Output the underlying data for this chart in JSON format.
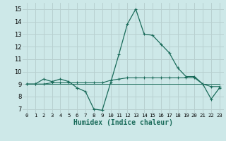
{
  "xlabel": "Humidex (Indice chaleur)",
  "background_color": "#cde8e8",
  "grid_color": "#b8d0d0",
  "line_color": "#1a6b5a",
  "xlim": [
    -0.5,
    23.5
  ],
  "ylim": [
    6.7,
    15.5
  ],
  "yticks": [
    7,
    8,
    9,
    10,
    11,
    12,
    13,
    14,
    15
  ],
  "xtick_labels": [
    "0",
    "1",
    "2",
    "3",
    "4",
    "5",
    "6",
    "7",
    "8",
    "9",
    "10",
    "11",
    "12",
    "13",
    "14",
    "15",
    "16",
    "17",
    "18",
    "19",
    "20",
    "21",
    "22",
    "23"
  ],
  "series1_x": [
    0,
    1,
    2,
    3,
    4,
    5,
    6,
    7,
    8,
    9,
    10,
    11,
    12,
    13,
    14,
    15,
    16,
    17,
    18,
    19,
    20,
    21,
    22,
    23
  ],
  "series1_y": [
    9.0,
    9.0,
    9.4,
    9.2,
    9.4,
    9.2,
    8.7,
    8.4,
    7.0,
    6.9,
    9.1,
    11.4,
    13.8,
    15.0,
    13.0,
    12.9,
    12.2,
    11.5,
    10.3,
    9.6,
    9.6,
    9.0,
    7.8,
    8.7
  ],
  "series2_x": [
    0,
    1,
    2,
    3,
    4,
    5,
    6,
    7,
    8,
    9,
    10,
    11,
    12,
    13,
    14,
    15,
    16,
    17,
    18,
    19,
    20,
    21,
    22,
    23
  ],
  "series2_y": [
    9.0,
    9.0,
    9.0,
    9.1,
    9.1,
    9.1,
    9.1,
    9.1,
    9.1,
    9.1,
    9.3,
    9.4,
    9.5,
    9.5,
    9.5,
    9.5,
    9.5,
    9.5,
    9.5,
    9.5,
    9.5,
    9.0,
    8.8,
    8.8
  ],
  "series3_x": [
    0,
    1,
    2,
    3,
    4,
    5,
    6,
    7,
    8,
    9,
    10,
    11,
    12,
    13,
    14,
    15,
    16,
    17,
    18,
    19,
    20,
    21,
    22,
    23
  ],
  "series3_y": [
    9.0,
    9.0,
    9.0,
    9.0,
    9.0,
    9.0,
    9.0,
    9.0,
    9.0,
    9.0,
    9.0,
    9.0,
    9.0,
    9.0,
    9.0,
    9.0,
    9.0,
    9.0,
    9.0,
    9.0,
    9.0,
    9.0,
    9.0,
    9.0
  ]
}
